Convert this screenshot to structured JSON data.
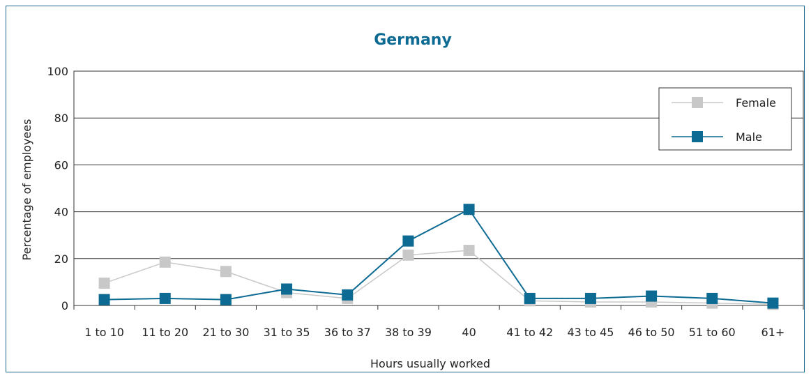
{
  "chart_data": {
    "type": "line",
    "title": "Germany",
    "xlabel": "Hours usually worked",
    "ylabel": "Percentage of employees",
    "ylim": [
      0,
      100
    ],
    "yticks": [
      0,
      20,
      40,
      60,
      80,
      100
    ],
    "categories": [
      "1 to 10",
      "11 to 20",
      "21 to 30",
      "31 to 35",
      "36 to 37",
      "38 to 39",
      "40",
      "41 to 42",
      "43 to 45",
      "46 to 50",
      "51 to 60",
      "61+"
    ],
    "series": [
      {
        "name": "Female",
        "color": "#c8c8c8",
        "values": [
          9.5,
          18.5,
          14.5,
          5.5,
          3,
          21.5,
          23.5,
          2,
          1.5,
          1.5,
          1,
          0.5
        ]
      },
      {
        "name": "Male",
        "color": "#0d6a92",
        "values": [
          2.5,
          3,
          2.5,
          7,
          4.5,
          27.5,
          41,
          3,
          3,
          4,
          3,
          1
        ]
      }
    ],
    "grid": true,
    "legend_position": "top-right"
  }
}
